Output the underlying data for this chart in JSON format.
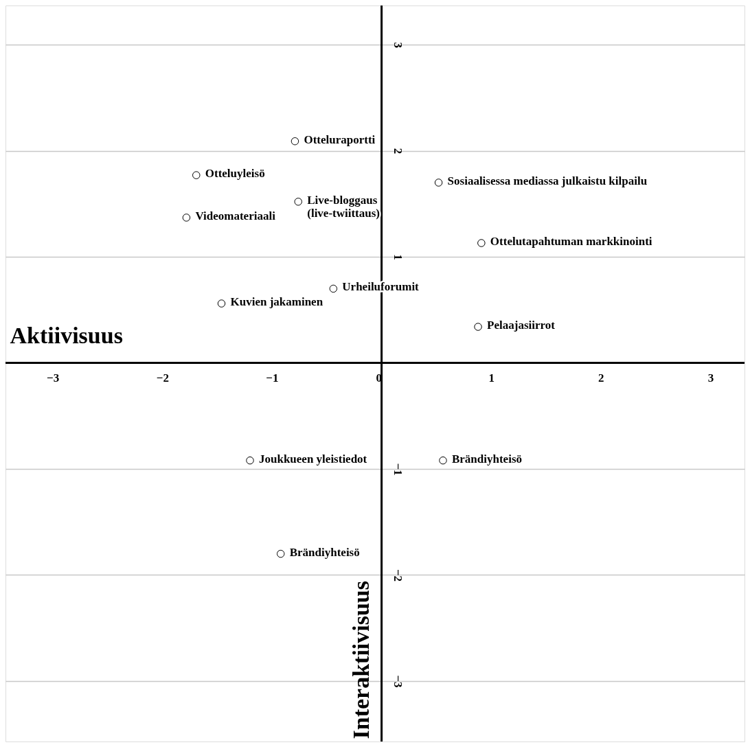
{
  "chart_data": {
    "type": "scatter",
    "xlabel": "Aktiivisuus",
    "ylabel": "Interaktiivisuus",
    "xlim": [
      -3.43,
      3.31
    ],
    "ylim": [
      -3.57,
      3.37
    ],
    "xticks": [
      -3,
      -2,
      -1,
      0,
      1,
      2,
      3
    ],
    "yticks": [
      -3,
      -2,
      -1,
      1,
      2,
      3
    ],
    "grid": "y",
    "marker": "circle",
    "series": [
      {
        "color": "#000000",
        "x": [
          -0.79,
          -1.69,
          -0.76,
          -1.78,
          0.52,
          0.91,
          -0.44,
          -1.46,
          0.88,
          -1.2,
          0.56,
          -0.92
        ],
        "values": [
          2.09,
          1.77,
          1.52,
          1.37,
          1.7,
          1.13,
          0.7,
          0.56,
          0.34,
          -0.92,
          -0.92,
          -1.8
        ]
      }
    ],
    "annotations": [
      {
        "text": "Otteluraportti",
        "x": -0.79,
        "y": 2.09
      },
      {
        "text": "Otteluyleisö",
        "x": -1.69,
        "y": 1.77
      },
      {
        "text": "Live-bloggaus\n(live-twiittaus)",
        "x": -0.76,
        "y": 1.52
      },
      {
        "text": "Videomateriaali",
        "x": -1.78,
        "y": 1.37
      },
      {
        "text": "Sosiaalisessa mediassa julkaistu kilpailu",
        "x": 0.52,
        "y": 1.7
      },
      {
        "text": "Ottelutapahtuman markkinointi",
        "x": 0.91,
        "y": 1.13
      },
      {
        "text": "Urheiluforumit",
        "x": -0.44,
        "y": 0.7
      },
      {
        "text": "Kuvien jakaminen",
        "x": -1.46,
        "y": 0.56
      },
      {
        "text": "Pelaajasiirrot",
        "x": 0.88,
        "y": 0.34
      },
      {
        "text": "Joukkueen yleistiedot",
        "x": -1.2,
        "y": -0.92
      },
      {
        "text": "Brändiyhteisö",
        "x": 0.56,
        "y": -0.92
      },
      {
        "text": "Brändiyhteisö",
        "x": -0.92,
        "y": -1.8
      }
    ]
  }
}
